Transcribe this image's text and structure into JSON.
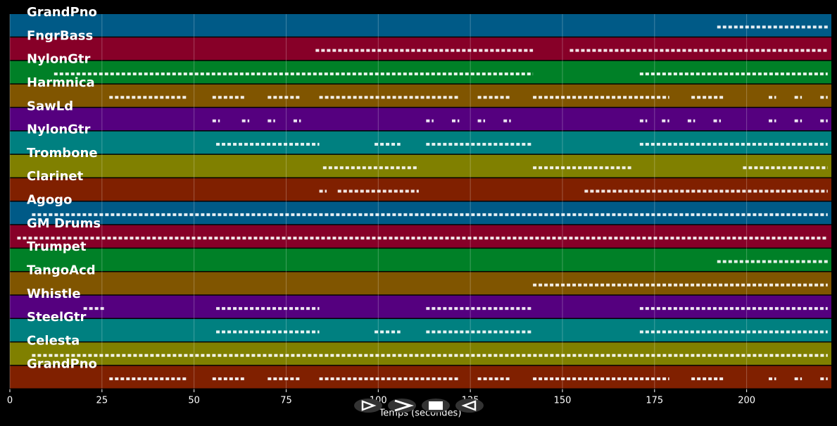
{
  "chart_data": {
    "type": "pianoroll",
    "xlabel": "Temps (secondes)",
    "xlim": [
      0,
      223
    ],
    "xticks": [
      0,
      25,
      50,
      75,
      100,
      125,
      150,
      175,
      200
    ],
    "grid": true,
    "series": [
      {
        "name": "GrandPno",
        "color": "#005a87",
        "notes": [
          [
            192,
            222
          ]
        ]
      },
      {
        "name": "FngrBass",
        "color": "#870028",
        "notes": [
          [
            83,
            142
          ],
          [
            152,
            222
          ]
        ]
      },
      {
        "name": "NylonGtr",
        "color": "#008027",
        "notes": [
          [
            12,
            142
          ],
          [
            171,
            222
          ]
        ]
      },
      {
        "name": "Harmnica",
        "color": "#805500",
        "notes": [
          [
            27,
            48
          ],
          [
            55,
            64
          ],
          [
            70,
            79
          ],
          [
            84,
            122
          ],
          [
            127,
            136
          ],
          [
            142,
            179
          ],
          [
            185,
            194
          ],
          [
            206,
            208
          ],
          [
            213,
            215
          ],
          [
            220,
            222
          ]
        ]
      },
      {
        "name": "SawLd",
        "color": "#55007f",
        "notes": [
          [
            55,
            57
          ],
          [
            63,
            65
          ],
          [
            70,
            72
          ],
          [
            77,
            79
          ],
          [
            113,
            115
          ],
          [
            120,
            122
          ],
          [
            127,
            129
          ],
          [
            134,
            136
          ],
          [
            171,
            173
          ],
          [
            177,
            179
          ],
          [
            184,
            186
          ],
          [
            191,
            193
          ],
          [
            206,
            208
          ],
          [
            213,
            215
          ],
          [
            220,
            222
          ]
        ]
      },
      {
        "name": "NylonGtr",
        "color": "#008080",
        "notes": [
          [
            56,
            84
          ],
          [
            99,
            106
          ],
          [
            113,
            142
          ],
          [
            171,
            222
          ]
        ]
      },
      {
        "name": "Trombone",
        "color": "#808000",
        "notes": [
          [
            85,
            111
          ],
          [
            142,
            157
          ],
          [
            157,
            169
          ],
          [
            199,
            222
          ]
        ]
      },
      {
        "name": "Clarinet",
        "color": "#802000",
        "notes": [
          [
            84,
            86
          ],
          [
            89,
            111
          ],
          [
            156,
            222
          ]
        ]
      },
      {
        "name": "Agogo",
        "color": "#005a87",
        "notes": [
          [
            6,
            222
          ]
        ]
      },
      {
        "name": "GM Drums",
        "color": "#870028",
        "notes": [
          [
            2,
            222
          ]
        ]
      },
      {
        "name": "Trumpet",
        "color": "#008027",
        "notes": [
          [
            192,
            222
          ]
        ]
      },
      {
        "name": "TangoAcd",
        "color": "#805500",
        "notes": [
          [
            142,
            222
          ]
        ]
      },
      {
        "name": "Whistle",
        "color": "#55007f",
        "notes": [
          [
            20,
            26
          ],
          [
            56,
            84
          ],
          [
            113,
            142
          ],
          [
            171,
            222
          ]
        ]
      },
      {
        "name": "SteelGtr",
        "color": "#008080",
        "notes": [
          [
            56,
            84
          ],
          [
            99,
            106
          ],
          [
            113,
            142
          ],
          [
            171,
            222
          ]
        ]
      },
      {
        "name": "Celesta",
        "color": "#808000",
        "notes": [
          [
            6,
            222
          ]
        ]
      },
      {
        "name": "GrandPno",
        "color": "#802000",
        "notes": [
          [
            27,
            48
          ],
          [
            55,
            64
          ],
          [
            70,
            79
          ],
          [
            84,
            122
          ],
          [
            127,
            136
          ],
          [
            142,
            179
          ],
          [
            185,
            194
          ],
          [
            206,
            208
          ],
          [
            213,
            215
          ],
          [
            220,
            222
          ]
        ]
      }
    ]
  }
}
